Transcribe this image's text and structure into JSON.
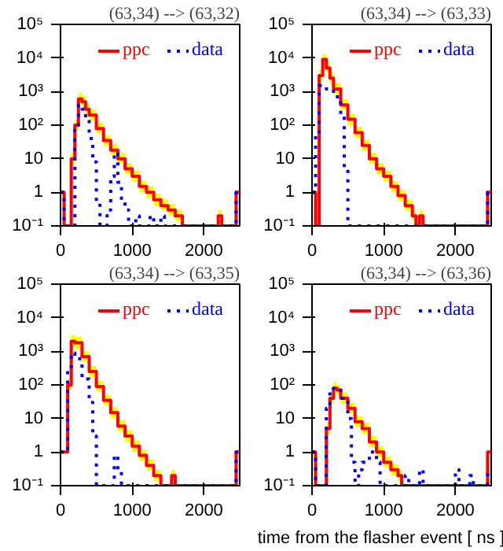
{
  "chart_data": [
    {
      "type": "step",
      "title": "(63,34) --> (63,32)",
      "log": "y",
      "grid": false,
      "legend": "top right",
      "xlim": [
        0,
        2500
      ],
      "xticks": [
        0,
        1000,
        2000
      ],
      "ylim": [
        0.1,
        100000
      ],
      "yticks": [
        {
          "value": 0.1,
          "label": "10⁻¹"
        },
        1,
        10,
        {
          "value": 100,
          "label": "10²"
        },
        {
          "value": 1000,
          "label": "10³"
        },
        {
          "value": 10000,
          "label": "10⁴"
        },
        {
          "value": 100000,
          "label": "10⁵"
        }
      ],
      "series": [
        {
          "name": "ppc",
          "color": "#ff0000",
          "line_style": "solid",
          "x": [
            0,
            50,
            150,
            200,
            250,
            300,
            350,
            400,
            500,
            600,
            700,
            800,
            900,
            1000,
            1100,
            1200,
            1300,
            1400,
            1500,
            1600,
            1700,
            2200,
            2250,
            2450,
            2500
          ],
          "values": [
            1,
            0.1,
            10,
            100,
            600,
            500,
            300,
            200,
            80,
            35,
            18,
            10,
            5,
            3,
            1.5,
            1,
            0.6,
            0.4,
            0.3,
            0.2,
            0.1,
            0.2,
            0.1,
            1,
            1
          ],
          "upper": [
            1,
            0.1,
            15,
            150,
            900,
            750,
            450,
            300,
            120,
            50,
            27,
            15,
            7.5,
            4.5,
            2.2,
            1.5,
            0.9,
            0.6,
            0.45,
            0.3,
            0.1,
            0.3,
            0.1,
            1,
            1
          ],
          "lower": [
            1,
            0.1,
            7,
            70,
            420,
            350,
            210,
            140,
            56,
            25,
            13,
            7,
            3.5,
            2.1,
            1,
            0.7,
            0.4,
            0.3,
            0.2,
            0.14,
            0.1,
            0.14,
            0.1,
            1,
            1
          ]
        },
        {
          "name": "data",
          "color": "#0000ff",
          "line_style": "dotted",
          "x": [
            0,
            50,
            200,
            250,
            300,
            350,
            400,
            450,
            500,
            550,
            650,
            700,
            750,
            800,
            850,
            900,
            950,
            1050,
            1100,
            1250,
            1300,
            1400,
            1450,
            2450,
            2500
          ],
          "values": [
            1,
            0.1,
            80,
            400,
            300,
            150,
            40,
            8,
            0.5,
            0.1,
            0.3,
            3,
            15,
            2,
            0.6,
            0.3,
            0.1,
            0.2,
            0.1,
            0.2,
            0.1,
            0.2,
            0.1,
            1,
            1
          ]
        }
      ]
    },
    {
      "type": "step",
      "title": "(63,34) --> (63,33)",
      "log": "y",
      "grid": false,
      "legend": "top right",
      "xlim": [
        0,
        2500
      ],
      "xticks": [
        0,
        1000,
        2000
      ],
      "ylim": [
        0.1,
        100000
      ],
      "yticks": [
        {
          "value": 0.1,
          "label": "10⁻¹"
        },
        1,
        10,
        {
          "value": 100,
          "label": "10²"
        },
        {
          "value": 1000,
          "label": "10³"
        },
        {
          "value": 10000,
          "label": "10⁴"
        },
        {
          "value": 100000,
          "label": "10⁵"
        }
      ],
      "series": [
        {
          "name": "ppc",
          "color": "#ff0000",
          "line_style": "solid",
          "x": [
            0,
            50,
            100,
            150,
            200,
            250,
            300,
            400,
            500,
            600,
            700,
            800,
            900,
            1000,
            1100,
            1200,
            1300,
            1400,
            1450,
            1500,
            1550,
            2450,
            2500
          ],
          "values": [
            1,
            0.1,
            3000,
            9000,
            5000,
            2500,
            1200,
            400,
            150,
            60,
            25,
            10,
            5,
            3,
            1.5,
            0.8,
            0.4,
            0.2,
            0.1,
            0.2,
            0.1,
            1,
            1
          ],
          "upper": [
            1,
            0.1,
            4500,
            13000,
            7500,
            3700,
            1800,
            600,
            220,
            90,
            37,
            15,
            7.5,
            4.5,
            2.2,
            1.2,
            0.6,
            0.3,
            0.1,
            0.3,
            0.1,
            1,
            1
          ],
          "lower": [
            1,
            0.1,
            2100,
            6300,
            3500,
            1700,
            840,
            280,
            100,
            42,
            17,
            7,
            3.5,
            2.1,
            1,
            0.56,
            0.28,
            0.14,
            0.1,
            0.14,
            0.1,
            1,
            1
          ]
        },
        {
          "name": "data",
          "color": "#0000ff",
          "line_style": "dotted",
          "x": [
            0,
            50,
            100,
            200,
            300,
            400,
            450,
            500,
            2450,
            2500
          ],
          "values": [
            1,
            50,
            1500,
            1200,
            700,
            200,
            5,
            0.1,
            1,
            1
          ]
        }
      ]
    },
    {
      "type": "step",
      "title": "(63,34) --> (63,35)",
      "log": "y",
      "grid": false,
      "legend": "top right",
      "xlim": [
        0,
        2500
      ],
      "xticks": [
        0,
        1000,
        2000
      ],
      "ylim": [
        0.1,
        100000
      ],
      "yticks": [
        {
          "value": 0.1,
          "label": "10⁻¹"
        },
        1,
        10,
        {
          "value": 100,
          "label": "10²"
        },
        {
          "value": 1000,
          "label": "10³"
        },
        {
          "value": 10000,
          "label": "10⁴"
        },
        {
          "value": 100000,
          "label": "10⁵"
        }
      ],
      "series": [
        {
          "name": "ppc",
          "color": "#ff0000",
          "line_style": "solid",
          "x": [
            0,
            50,
            100,
            150,
            200,
            300,
            400,
            500,
            600,
            700,
            800,
            900,
            1000,
            1100,
            1200,
            1300,
            1400,
            1550,
            1600,
            2450,
            2500
          ],
          "values": [
            1,
            1,
            100,
            2000,
            1800,
            700,
            250,
            90,
            35,
            15,
            6,
            3,
            1.5,
            0.8,
            0.4,
            0.2,
            0.1,
            0.2,
            0.1,
            1,
            1
          ],
          "upper": [
            1,
            1,
            150,
            3000,
            2700,
            1000,
            370,
            130,
            50,
            22,
            9,
            4.5,
            2.2,
            1.2,
            0.6,
            0.3,
            0.1,
            0.3,
            0.1,
            1,
            1
          ],
          "lower": [
            1,
            1,
            70,
            1400,
            1200,
            490,
            170,
            63,
            25,
            10,
            4,
            2,
            1,
            0.56,
            0.28,
            0.14,
            0.1,
            0.14,
            0.1,
            1,
            1
          ]
        },
        {
          "name": "data",
          "color": "#0000ff",
          "line_style": "dotted",
          "x": [
            0,
            50,
            100,
            150,
            200,
            300,
            400,
            450,
            500,
            750,
            800,
            850,
            2450,
            2500
          ],
          "values": [
            1,
            1,
            300,
            900,
            600,
            150,
            30,
            3,
            0.1,
            0.8,
            0.3,
            0.1,
            1,
            1
          ]
        }
      ]
    },
    {
      "type": "step",
      "title": "(63,34) --> (63,36)",
      "xlabel": "time from the flasher event [ ns ]",
      "log": "y",
      "grid": false,
      "legend": "top right",
      "xlim": [
        0,
        2500
      ],
      "xticks": [
        0,
        1000,
        2000
      ],
      "ylim": [
        0.1,
        100000
      ],
      "yticks": [
        {
          "value": 0.1,
          "label": "10⁻¹"
        },
        1,
        10,
        {
          "value": 100,
          "label": "10²"
        },
        {
          "value": 1000,
          "label": "10³"
        },
        {
          "value": 10000,
          "label": "10⁴"
        },
        {
          "value": 100000,
          "label": "10⁵"
        }
      ],
      "series": [
        {
          "name": "ppc",
          "color": "#ff0000",
          "line_style": "solid",
          "x": [
            0,
            50,
            200,
            250,
            300,
            350,
            400,
            500,
            600,
            700,
            800,
            900,
            1000,
            1100,
            1200,
            1250,
            2450,
            2500
          ],
          "values": [
            1,
            0.1,
            5,
            40,
            80,
            70,
            40,
            20,
            8,
            5,
            2,
            1,
            0.5,
            0.3,
            0.2,
            0.1,
            1,
            1
          ],
          "upper": [
            1,
            0.1,
            7.5,
            60,
            120,
            100,
            60,
            30,
            12,
            7.5,
            3,
            1.5,
            0.75,
            0.45,
            0.3,
            0.1,
            1,
            1
          ],
          "lower": [
            1,
            0.1,
            3.5,
            28,
            56,
            49,
            28,
            14,
            5.6,
            3.5,
            1.4,
            0.7,
            0.35,
            0.2,
            0.14,
            0.1,
            1,
            1
          ]
        },
        {
          "name": "data",
          "color": "#0000ff",
          "line_style": "dotted",
          "x": [
            0,
            50,
            200,
            250,
            300,
            400,
            500,
            550,
            600,
            650,
            700,
            800,
            900,
            950,
            1300,
            1350,
            1500,
            1550,
            2000,
            2050,
            2200,
            2250,
            2450,
            2500
          ],
          "values": [
            1,
            0.1,
            20,
            60,
            80,
            40,
            10,
            0.5,
            0.1,
            0.3,
            0.5,
            1,
            0.5,
            0.1,
            0.2,
            0.1,
            0.3,
            0.1,
            0.3,
            0.1,
            0.2,
            0.1,
            0.3,
            0.3
          ]
        }
      ]
    }
  ]
}
